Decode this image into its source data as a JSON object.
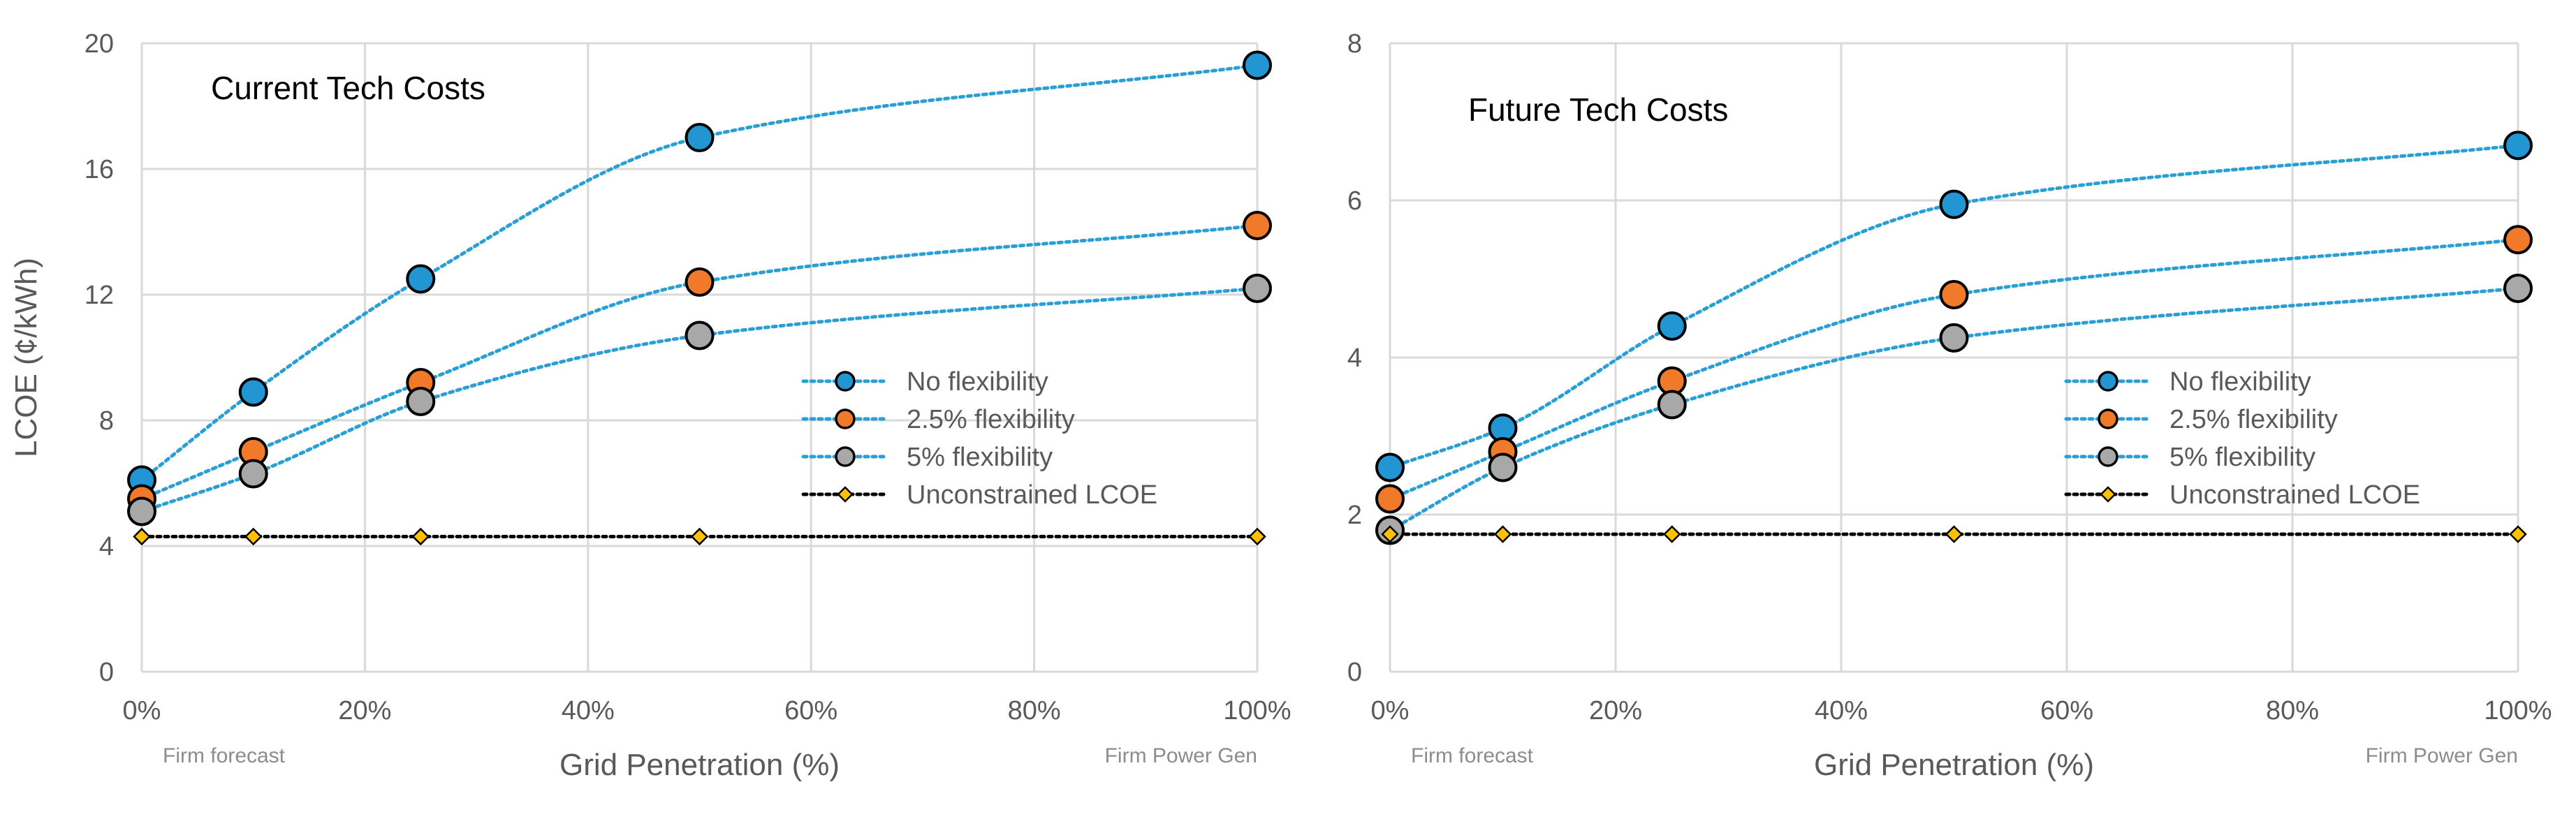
{
  "chart_data": [
    {
      "type": "line",
      "title": "Current Tech Costs",
      "xlabel": "Grid Penetration (%)",
      "ylabel": "LCOE  (¢/kWh)",
      "x": [
        0,
        10,
        25,
        50,
        100
      ],
      "xlim": [
        0,
        100
      ],
      "ylim": [
        0,
        20
      ],
      "xticks": [
        0,
        20,
        40,
        60,
        80,
        100
      ],
      "xtick_labels": [
        "0%",
        "20%",
        "40%",
        "60%",
        "80%",
        "100%"
      ],
      "yticks": [
        0,
        4,
        8,
        12,
        16,
        20
      ],
      "ytick_labels": [
        "0",
        "4",
        "8",
        "12",
        "16",
        "20"
      ],
      "x_annotations": [
        {
          "text": "Firm forecast",
          "x": 0
        },
        {
          "text": "Firm Power Gen",
          "x": 100
        }
      ],
      "grid": true,
      "legend_placement": "center-right",
      "series": [
        {
          "name": "No flexibility",
          "values": [
            6.1,
            8.9,
            12.5,
            17.0,
            19.3
          ],
          "color": "#2196D3",
          "marker": "circle",
          "line": "dotted"
        },
        {
          "name": "2.5% flexibility",
          "values": [
            5.5,
            7.0,
            9.2,
            12.4,
            14.2
          ],
          "color": "#F07A2A",
          "marker": "circle",
          "line": "dotted"
        },
        {
          "name": "5% flexibility",
          "values": [
            5.1,
            6.3,
            8.6,
            10.7,
            12.2
          ],
          "color": "#A8A8A8",
          "marker": "circle",
          "line": "dotted"
        },
        {
          "name": "Unconstrained LCOE",
          "values": [
            4.3,
            4.3,
            4.3,
            4.3,
            4.3
          ],
          "color": "#FFC000",
          "marker": "diamond",
          "line": "dotted-black"
        }
      ]
    },
    {
      "type": "line",
      "title": "Future Tech Costs",
      "xlabel": "Grid Penetration (%)",
      "ylabel": "",
      "x": [
        0,
        10,
        25,
        50,
        100
      ],
      "xlim": [
        0,
        100
      ],
      "ylim": [
        0,
        8
      ],
      "xticks": [
        0,
        20,
        40,
        60,
        80,
        100
      ],
      "xtick_labels": [
        "0%",
        "20%",
        "40%",
        "60%",
        "80%",
        "100%"
      ],
      "yticks": [
        0,
        2,
        4,
        6,
        8
      ],
      "ytick_labels": [
        "0",
        "2",
        "4",
        "6",
        "8"
      ],
      "x_annotations": [
        {
          "text": "Firm forecast",
          "x": 0
        },
        {
          "text": "Firm Power Gen",
          "x": 100
        }
      ],
      "grid": true,
      "legend_placement": "center-right",
      "series": [
        {
          "name": "No flexibility",
          "values": [
            2.6,
            3.1,
            4.4,
            5.95,
            6.7
          ],
          "color": "#2196D3",
          "marker": "circle",
          "line": "dotted"
        },
        {
          "name": "2.5% flexibility",
          "values": [
            2.2,
            2.8,
            3.7,
            4.8,
            5.5
          ],
          "color": "#F07A2A",
          "marker": "circle",
          "line": "dotted"
        },
        {
          "name": "5% flexibility",
          "values": [
            1.8,
            2.6,
            3.4,
            4.25,
            4.88
          ],
          "color": "#A8A8A8",
          "marker": "circle",
          "line": "dotted"
        },
        {
          "name": "Unconstrained LCOE",
          "values": [
            1.75,
            1.75,
            1.75,
            1.75,
            1.75
          ],
          "color": "#FFC000",
          "marker": "diamond",
          "line": "dotted-black"
        }
      ]
    }
  ]
}
